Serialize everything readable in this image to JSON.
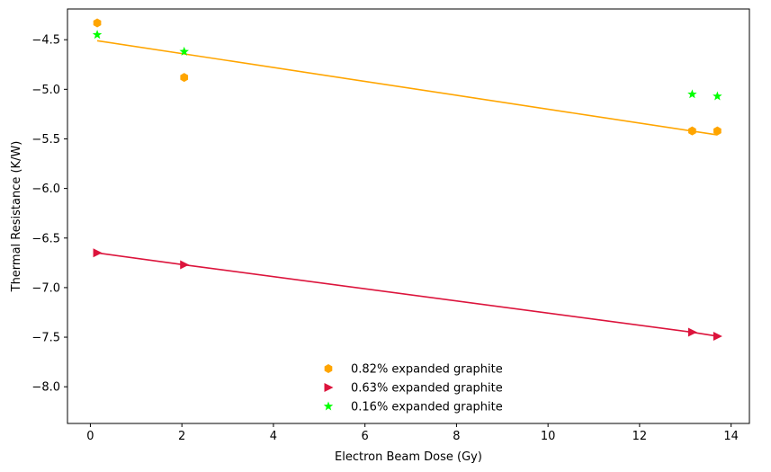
{
  "chart_data": {
    "type": "scatter",
    "title": "",
    "xlabel": "Electron Beam Dose (Gy)",
    "ylabel": "Thermal Resistance (K/W)",
    "xlim": [
      -0.5,
      14.4
    ],
    "ylim": [
      -8.37,
      -4.19
    ],
    "xticks": [
      0,
      2,
      4,
      6,
      8,
      10,
      12,
      14
    ],
    "xtick_labels": [
      "0",
      "2",
      "4",
      "6",
      "8",
      "10",
      "12",
      "14"
    ],
    "yticks": [
      -8.0,
      -7.5,
      -7.0,
      -6.5,
      -6.0,
      -5.5,
      -5.0,
      -4.5
    ],
    "ytick_labels": [
      "−8.0",
      "−7.5",
      "−7.0",
      "−6.5",
      "−6.0",
      "−5.5",
      "−5.0",
      "−4.5"
    ],
    "grid": false,
    "legend_position": "lower-center",
    "series": [
      {
        "name": "0.82% expanded graphite",
        "marker": "hexagon",
        "color": "#FFA500",
        "points": [
          [
            0.15,
            -4.33
          ],
          [
            2.05,
            -4.88
          ],
          [
            13.15,
            -5.42
          ],
          [
            13.7,
            -5.42
          ]
        ],
        "fit_line": [
          [
            0.15,
            -4.51
          ],
          [
            13.7,
            -5.46
          ]
        ]
      },
      {
        "name": "0.63% expanded graphite",
        "marker": "triangle-right",
        "color": "#DC143C",
        "points": [
          [
            0.15,
            -6.65
          ],
          [
            2.05,
            -6.77
          ],
          [
            13.15,
            -7.45
          ],
          [
            13.7,
            -7.49
          ]
        ],
        "fit_line": [
          [
            0.15,
            -6.65
          ],
          [
            2.05,
            -6.77
          ],
          [
            13.15,
            -7.45
          ],
          [
            13.7,
            -7.49
          ]
        ]
      },
      {
        "name": "0.16% expanded graphite",
        "marker": "star",
        "color": "#00FF00",
        "points": [
          [
            0.15,
            -4.45
          ],
          [
            2.05,
            -4.62
          ],
          [
            13.15,
            -5.05
          ],
          [
            13.7,
            -5.07
          ]
        ],
        "fit_line": null
      }
    ]
  }
}
